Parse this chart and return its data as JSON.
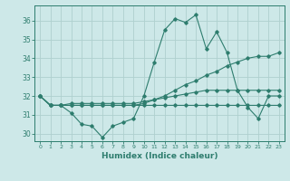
{
  "x": [
    0,
    1,
    2,
    3,
    4,
    5,
    6,
    7,
    8,
    9,
    10,
    11,
    12,
    13,
    14,
    15,
    16,
    17,
    18,
    19,
    20,
    21,
    22,
    23
  ],
  "line_volatile": [
    32.0,
    31.5,
    31.5,
    31.1,
    30.5,
    30.4,
    29.8,
    30.4,
    30.6,
    30.8,
    32.0,
    33.8,
    35.5,
    36.1,
    35.9,
    36.3,
    34.5,
    35.4,
    34.3,
    32.3,
    31.4,
    30.8,
    32.0,
    32.0
  ],
  "line_mean": [
    32.0,
    31.5,
    31.5,
    31.5,
    31.5,
    31.5,
    31.5,
    31.5,
    31.5,
    31.5,
    31.6,
    31.8,
    32.0,
    32.3,
    32.6,
    32.8,
    33.1,
    33.3,
    33.6,
    33.8,
    34.0,
    34.1,
    34.1,
    34.3
  ],
  "line_upper": [
    32.0,
    31.5,
    31.5,
    31.6,
    31.6,
    31.6,
    31.6,
    31.6,
    31.6,
    31.6,
    31.7,
    31.8,
    31.9,
    32.0,
    32.1,
    32.2,
    32.3,
    32.3,
    32.3,
    32.3,
    32.3,
    32.3,
    32.3,
    32.3
  ],
  "line_lower": [
    32.0,
    31.5,
    31.5,
    31.5,
    31.5,
    31.5,
    31.5,
    31.5,
    31.5,
    31.5,
    31.5,
    31.5,
    31.5,
    31.5,
    31.5,
    31.5,
    31.5,
    31.5,
    31.5,
    31.5,
    31.5,
    31.5,
    31.5,
    31.5
  ],
  "line_color": "#2e7d6e",
  "background_color": "#cde8e8",
  "grid_color": "#afd0ce",
  "xlabel": "Humidex (Indice chaleur)",
  "ylim": [
    29.6,
    36.8
  ],
  "yticks": [
    30,
    31,
    32,
    33,
    34,
    35,
    36
  ],
  "xticks": [
    0,
    1,
    2,
    3,
    4,
    5,
    6,
    7,
    8,
    9,
    10,
    11,
    12,
    13,
    14,
    15,
    16,
    17,
    18,
    19,
    20,
    21,
    22,
    23
  ],
  "xlim": [
    -0.5,
    23.5
  ]
}
